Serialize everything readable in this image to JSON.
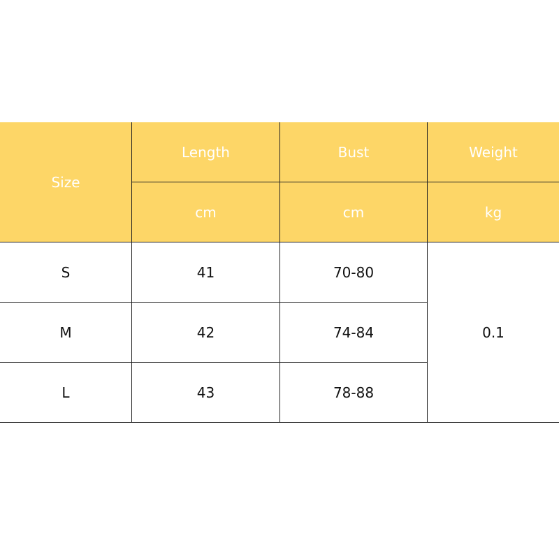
{
  "table": {
    "header": [
      "Size",
      "Length",
      "Bust",
      "Weight"
    ],
    "units": [
      "cm",
      "cm",
      "kg"
    ],
    "rows": [
      [
        "S",
        "41",
        "70-80"
      ],
      [
        "M",
        "42",
        "74-84"
      ],
      [
        "L",
        "43",
        "78-88"
      ]
    ],
    "weight": "0.1"
  }
}
